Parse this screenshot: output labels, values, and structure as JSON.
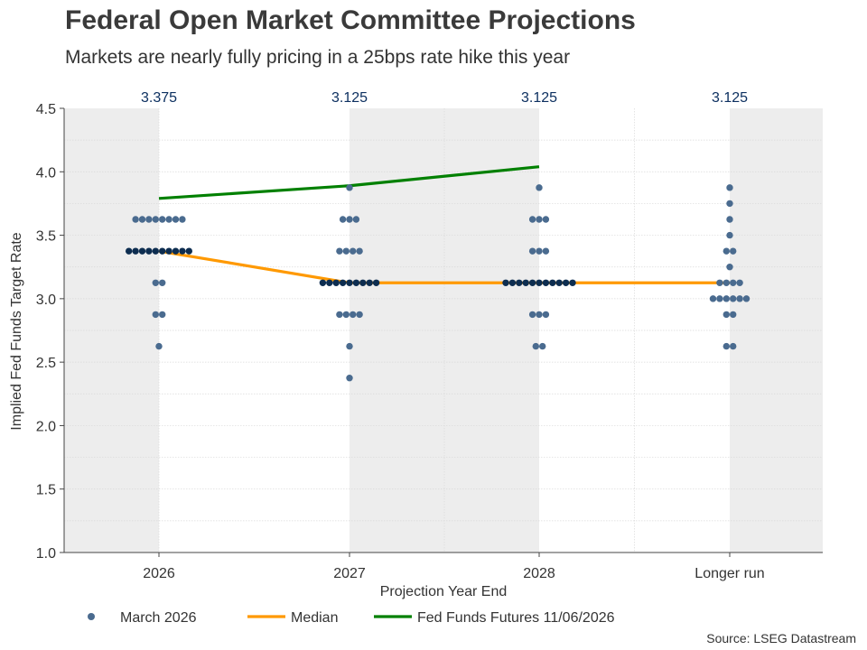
{
  "title": "Federal Open Market Committee Projections",
  "subtitle": "Markets are nearly fully pricing in a 25bps rate hike this year",
  "source": "Source: LSEG Datastream",
  "colors": {
    "dots": "#4a6b8f",
    "dots_dark": "#0d2d50",
    "median": "#ff9900",
    "futures": "#008000",
    "shade": "#ededed",
    "annotation": "#0d3060"
  },
  "chart_data": {
    "type": "scatter",
    "xlabel": "Projection Year End",
    "ylabel": "Implied Fed Funds Target Rate",
    "categories": [
      "2026",
      "2027",
      "2028",
      "Longer run"
    ],
    "ylim": [
      1.0,
      4.5
    ],
    "yticks": [
      "1.0",
      "1.5",
      "2.0",
      "2.5",
      "3.0",
      "3.5",
      "4.0",
      "4.5"
    ],
    "grid": true,
    "legend_position": "bottom",
    "median_labels": [
      "3.375",
      "3.125",
      "3.125",
      "3.125"
    ],
    "series": [
      {
        "name": "March 2026",
        "marker": "dot",
        "points": [
          {
            "category": "2026",
            "values": [
              3.625,
              3.625,
              3.625,
              3.625,
              3.625,
              3.625,
              3.625,
              3.625,
              3.375,
              3.375,
              3.375,
              3.375,
              3.375,
              3.375,
              3.375,
              3.375,
              3.375,
              3.375,
              3.125,
              3.125,
              2.875,
              2.875,
              2.625
            ]
          },
          {
            "category": "2027",
            "values": [
              3.875,
              3.625,
              3.625,
              3.625,
              3.375,
              3.375,
              3.375,
              3.375,
              3.125,
              3.125,
              3.125,
              3.125,
              3.125,
              3.125,
              3.125,
              3.125,
              3.125,
              2.875,
              2.875,
              2.875,
              2.875,
              2.625,
              2.375
            ]
          },
          {
            "category": "2028",
            "values": [
              3.875,
              3.625,
              3.625,
              3.625,
              3.375,
              3.375,
              3.375,
              3.125,
              3.125,
              3.125,
              3.125,
              3.125,
              3.125,
              3.125,
              3.125,
              3.125,
              3.125,
              3.125,
              2.875,
              2.875,
              2.875,
              2.625,
              2.625
            ]
          },
          {
            "category": "Longer run",
            "values": [
              3.875,
              3.75,
              3.625,
              3.5,
              3.375,
              3.375,
              3.25,
              3.125,
              3.125,
              3.125,
              3.125,
              3.0,
              3.0,
              3.0,
              3.0,
              3.0,
              3.0,
              2.875,
              2.875,
              2.625,
              2.625
            ]
          }
        ]
      },
      {
        "name": "Median",
        "type": "line",
        "x": [
          "2026",
          "2027",
          "2028",
          "Longer run"
        ],
        "values": [
          3.375,
          3.125,
          3.125,
          3.125
        ]
      },
      {
        "name": "Fed Funds Futures 11/06/2026",
        "type": "line",
        "x": [
          "2026",
          "2027",
          "2028"
        ],
        "values": [
          3.79,
          3.89,
          4.04
        ]
      }
    ]
  }
}
